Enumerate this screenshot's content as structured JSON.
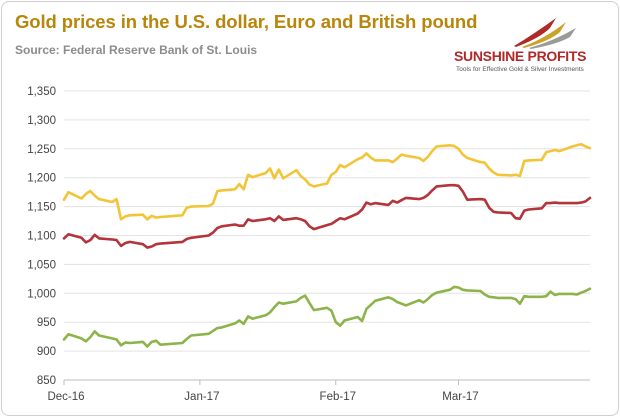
{
  "header": {
    "title": "Gold prices in the U.S. dollar, Euro and British pound",
    "source": "Source: Federal Reserve Bank of St. Louis"
  },
  "logo": {
    "name": "SUNSHINE PROFITS",
    "tagline": "Tools for Effective Gold & Silver Investments"
  },
  "colors": {
    "usd": "#f2c436",
    "eur": "#b3343a",
    "gbp": "#8db44a",
    "title": "#b8860b"
  },
  "chart_data": {
    "type": "line",
    "title": "Gold prices in the U.S. dollar, Euro and British pound",
    "xlabel": "",
    "ylabel": "",
    "ylim": [
      850,
      1350
    ],
    "yticks": [
      850,
      900,
      950,
      1000,
      1050,
      1100,
      1150,
      1200,
      1250,
      1300,
      1350
    ],
    "ytick_labels": [
      "850",
      "900",
      "950",
      "1,000",
      "1,050",
      "1,100",
      "1,150",
      "1,200",
      "1,250",
      "1,300",
      "1,350"
    ],
    "x_range": [
      "2016-12-01",
      "2017-03-31"
    ],
    "x_ticks": [
      {
        "date": "2016-12-01",
        "label": "Dec-16"
      },
      {
        "date": "2017-01-01",
        "label": "Jan-17"
      },
      {
        "date": "2017-02-01",
        "label": "Feb-17"
      },
      {
        "date": "2017-03-01",
        "label": "Mar-17"
      }
    ],
    "grid": "horizontal",
    "legend": "none",
    "x": [
      "2016-12-01",
      "2016-12-02",
      "2016-12-05",
      "2016-12-06",
      "2016-12-07",
      "2016-12-08",
      "2016-12-09",
      "2016-12-12",
      "2016-12-13",
      "2016-12-14",
      "2016-12-15",
      "2016-12-16",
      "2016-12-19",
      "2016-12-20",
      "2016-12-21",
      "2016-12-22",
      "2016-12-23",
      "2016-12-28",
      "2016-12-29",
      "2016-12-30",
      "2017-01-03",
      "2017-01-04",
      "2017-01-05",
      "2017-01-06",
      "2017-01-09",
      "2017-01-10",
      "2017-01-11",
      "2017-01-12",
      "2017-01-13",
      "2017-01-16",
      "2017-01-17",
      "2017-01-18",
      "2017-01-19",
      "2017-01-20",
      "2017-01-23",
      "2017-01-24",
      "2017-01-25",
      "2017-01-26",
      "2017-01-27",
      "2017-01-30",
      "2017-01-31",
      "2017-02-01",
      "2017-02-02",
      "2017-02-03",
      "2017-02-06",
      "2017-02-07",
      "2017-02-08",
      "2017-02-09",
      "2017-02-10",
      "2017-02-13",
      "2017-02-14",
      "2017-02-15",
      "2017-02-16",
      "2017-02-17",
      "2017-02-20",
      "2017-02-21",
      "2017-02-22",
      "2017-02-23",
      "2017-02-24",
      "2017-02-27",
      "2017-02-28",
      "2017-03-01",
      "2017-03-02",
      "2017-03-03",
      "2017-03-06",
      "2017-03-07",
      "2017-03-08",
      "2017-03-09",
      "2017-03-10",
      "2017-03-13",
      "2017-03-14",
      "2017-03-15",
      "2017-03-16",
      "2017-03-17",
      "2017-03-20",
      "2017-03-21",
      "2017-03-22",
      "2017-03-23",
      "2017-03-24",
      "2017-03-27",
      "2017-03-28",
      "2017-03-29",
      "2017-03-30",
      "2017-03-31"
    ],
    "series": [
      {
        "key": "usd",
        "values": [
          1162,
          1175,
          1164,
          1172,
          1177,
          1169,
          1163,
          1158,
          1163,
          1128,
          1133,
          1135,
          1136,
          1128,
          1134,
          1131,
          1132,
          1135,
          1148,
          1150,
          1151,
          1155,
          1177,
          1178,
          1180,
          1189,
          1180,
          1205,
          1201,
          1208,
          1216,
          1199,
          1214,
          1199,
          1213,
          1203,
          1197,
          1188,
          1185,
          1190,
          1205,
          1210,
          1222,
          1218,
          1232,
          1235,
          1242,
          1235,
          1230,
          1230,
          1227,
          1233,
          1240,
          1238,
          1234,
          1229,
          1236,
          1246,
          1254,
          1256,
          1255,
          1250,
          1240,
          1234,
          1227,
          1226,
          1216,
          1209,
          1205,
          1204,
          1205,
          1203,
          1229,
          1230,
          1231,
          1244,
          1246,
          1248,
          1246,
          1254,
          1256,
          1258,
          1254,
          1251
        ]
      },
      {
        "key": "eur",
        "values": [
          1095,
          1102,
          1096,
          1088,
          1092,
          1101,
          1095,
          1093,
          1092,
          1082,
          1087,
          1089,
          1085,
          1079,
          1081,
          1085,
          1086,
          1089,
          1094,
          1096,
          1100,
          1105,
          1113,
          1116,
          1119,
          1117,
          1117,
          1128,
          1125,
          1128,
          1130,
          1125,
          1133,
          1127,
          1130,
          1128,
          1125,
          1116,
          1111,
          1118,
          1120,
          1125,
          1130,
          1128,
          1138,
          1145,
          1157,
          1154,
          1156,
          1153,
          1160,
          1157,
          1161,
          1165,
          1163,
          1165,
          1170,
          1178,
          1185,
          1187,
          1187,
          1186,
          1176,
          1162,
          1163,
          1162,
          1148,
          1141,
          1140,
          1139,
          1130,
          1129,
          1143,
          1145,
          1147,
          1156,
          1156,
          1157,
          1156,
          1156,
          1156,
          1157,
          1159,
          1165
        ]
      },
      {
        "key": "gbp",
        "values": [
          920,
          929,
          922,
          917,
          924,
          934,
          927,
          922,
          920,
          910,
          915,
          914,
          916,
          908,
          916,
          918,
          911,
          914,
          921,
          927,
          930,
          935,
          940,
          941,
          948,
          953,
          947,
          960,
          956,
          962,
          967,
          976,
          984,
          982,
          986,
          992,
          996,
          983,
          971,
          975,
          970,
          950,
          944,
          953,
          959,
          952,
          973,
          980,
          987,
          993,
          990,
          985,
          982,
          979,
          988,
          984,
          990,
          997,
          1001,
          1006,
          1011,
          1010,
          1006,
          1005,
          1004,
          998,
          994,
          993,
          992,
          992,
          990,
          982,
          995,
          994,
          994,
          995,
          1003,
          997,
          999,
          999,
          998,
          1001,
          1004,
          1008
        ]
      }
    ]
  }
}
